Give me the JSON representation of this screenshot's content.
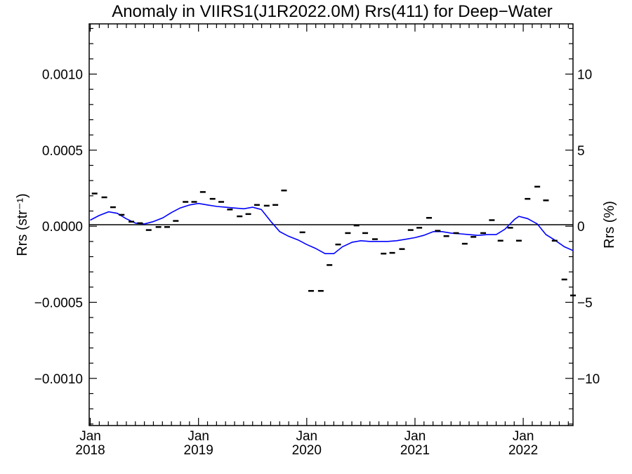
{
  "chart_data": {
    "type": "scatter",
    "title": "Anomaly in VIIRS1(J1R2022.0M) Rrs(411) for Deep−Water",
    "ylabel": "Rrs (str⁻¹)",
    "y2label": "Rrs (%)",
    "xlabel": "",
    "ylim": [
      -0.00131,
      0.00133
    ],
    "y2lim": [
      -13.1,
      13.3
    ],
    "xlim_years": [
      2017.99,
      2022.46
    ],
    "grid": false,
    "x_ticks": [
      {
        "year": 2018,
        "month": "Jan",
        "yearLabel": "2018"
      },
      {
        "year": 2019,
        "month": "Jan",
        "yearLabel": "2019"
      },
      {
        "year": 2020,
        "month": "Jan",
        "yearLabel": "2020"
      },
      {
        "year": 2021,
        "month": "Jan",
        "yearLabel": "2021"
      },
      {
        "year": 2022,
        "month": "Jan",
        "yearLabel": "2022"
      }
    ],
    "y_ticks": [
      {
        "v": 0.001,
        "label": "0.0010"
      },
      {
        "v": 0.0005,
        "label": "0.0005"
      },
      {
        "v": 0.0,
        "label": "0.0000"
      },
      {
        "v": -0.0005,
        "label": "−0.0005"
      },
      {
        "v": -0.001,
        "label": "−0.0010"
      }
    ],
    "y2_ticks": [
      {
        "v": 10,
        "label": "10"
      },
      {
        "v": 5,
        "label": "5"
      },
      {
        "v": 0,
        "label": "0"
      },
      {
        "v": -5,
        "label": "−5"
      },
      {
        "v": -10,
        "label": "−10"
      }
    ],
    "zero_line": true,
    "series": [
      {
        "kind": "markers",
        "color": "#000000",
        "points": [
          [
            2018.04,
            0.000215
          ],
          [
            2018.13,
            0.00019
          ],
          [
            2018.21,
            0.000125
          ],
          [
            2018.29,
            7.5e-05
          ],
          [
            2018.38,
            3e-05
          ],
          [
            2018.46,
            2e-05
          ],
          [
            2018.54,
            -2.5e-05
          ],
          [
            2018.63,
            -5e-06
          ],
          [
            2018.71,
            -5e-06
          ],
          [
            2018.79,
            3.5e-05
          ],
          [
            2018.88,
            0.00016
          ],
          [
            2018.96,
            0.00016
          ],
          [
            2019.04,
            0.000225
          ],
          [
            2019.13,
            0.00018
          ],
          [
            2019.21,
            0.00016
          ],
          [
            2019.29,
            0.00011
          ],
          [
            2019.38,
            6.5e-05
          ],
          [
            2019.46,
            8e-05
          ],
          [
            2019.54,
            0.00014
          ],
          [
            2019.63,
            0.000135
          ],
          [
            2019.71,
            0.00014
          ],
          [
            2019.79,
            0.000235
          ],
          [
            2019.96,
            -4e-05
          ],
          [
            2020.04,
            -0.000425
          ],
          [
            2020.13,
            -0.000425
          ],
          [
            2020.21,
            -0.000255
          ],
          [
            2020.29,
            -0.00012
          ],
          [
            2020.38,
            -4.5e-05
          ],
          [
            2020.46,
            5e-06
          ],
          [
            2020.54,
            -4.5e-05
          ],
          [
            2020.63,
            -8.5e-05
          ],
          [
            2020.71,
            -0.00018
          ],
          [
            2020.79,
            -0.000175
          ],
          [
            2020.88,
            -0.00015
          ],
          [
            2020.96,
            -2.5e-05
          ],
          [
            2021.04,
            -1e-05
          ],
          [
            2021.13,
            5.5e-05
          ],
          [
            2021.21,
            -3e-05
          ],
          [
            2021.29,
            -6.5e-05
          ],
          [
            2021.38,
            -4.5e-05
          ],
          [
            2021.46,
            -0.000115
          ],
          [
            2021.54,
            -7e-05
          ],
          [
            2021.63,
            -4.5e-05
          ],
          [
            2021.71,
            4e-05
          ],
          [
            2021.79,
            -9.5e-05
          ],
          [
            2021.88,
            -1e-05
          ],
          [
            2021.96,
            -9.5e-05
          ],
          [
            2022.04,
            0.00018
          ],
          [
            2022.13,
            0.00026
          ],
          [
            2022.21,
            0.00017
          ],
          [
            2022.29,
            -9.5e-05
          ],
          [
            2022.38,
            -0.00035
          ],
          [
            2022.46,
            -0.000455
          ]
        ]
      },
      {
        "kind": "line",
        "color": "#0000ff",
        "points": [
          [
            2018.0,
            4e-05
          ],
          [
            2018.08,
            7e-05
          ],
          [
            2018.17,
            9.5e-05
          ],
          [
            2018.25,
            8.5e-05
          ],
          [
            2018.33,
            5e-05
          ],
          [
            2018.42,
            2e-05
          ],
          [
            2018.5,
            1.5e-05
          ],
          [
            2018.58,
            3e-05
          ],
          [
            2018.67,
            5.5e-05
          ],
          [
            2018.75,
            9e-05
          ],
          [
            2018.83,
            0.00012
          ],
          [
            2018.92,
            0.00014
          ],
          [
            2019.0,
            0.00015
          ],
          [
            2019.08,
            0.00014
          ],
          [
            2019.17,
            0.00013
          ],
          [
            2019.25,
            0.000125
          ],
          [
            2019.33,
            0.00012
          ],
          [
            2019.42,
            0.000115
          ],
          [
            2019.5,
            0.000125
          ],
          [
            2019.58,
            0.00011
          ],
          [
            2019.67,
            3e-05
          ],
          [
            2019.75,
            -3.5e-05
          ],
          [
            2019.83,
            -6.5e-05
          ],
          [
            2019.92,
            -9e-05
          ],
          [
            2020.0,
            -0.00012
          ],
          [
            2020.08,
            -0.000145
          ],
          [
            2020.17,
            -0.00018
          ],
          [
            2020.25,
            -0.00018
          ],
          [
            2020.33,
            -0.000135
          ],
          [
            2020.42,
            -0.000105
          ],
          [
            2020.5,
            -9.5e-05
          ],
          [
            2020.58,
            -0.0001
          ],
          [
            2020.67,
            -0.0001
          ],
          [
            2020.75,
            -0.0001
          ],
          [
            2020.83,
            -9.5e-05
          ],
          [
            2020.92,
            -8.5e-05
          ],
          [
            2021.0,
            -7.5e-05
          ],
          [
            2021.08,
            -6e-05
          ],
          [
            2021.17,
            -3.5e-05
          ],
          [
            2021.25,
            -3.5e-05
          ],
          [
            2021.33,
            -4.5e-05
          ],
          [
            2021.42,
            -5e-05
          ],
          [
            2021.5,
            -5.5e-05
          ],
          [
            2021.58,
            -6e-05
          ],
          [
            2021.67,
            -5.5e-05
          ],
          [
            2021.75,
            -5.5e-05
          ],
          [
            2021.83,
            -2e-05
          ],
          [
            2021.92,
            4.5e-05
          ],
          [
            2021.96,
            6.5e-05
          ],
          [
            2022.04,
            5e-05
          ],
          [
            2022.13,
            1.5e-05
          ],
          [
            2022.21,
            -5.5e-05
          ],
          [
            2022.29,
            -9e-05
          ],
          [
            2022.38,
            -0.000135
          ],
          [
            2022.46,
            -0.00016
          ]
        ]
      }
    ]
  }
}
